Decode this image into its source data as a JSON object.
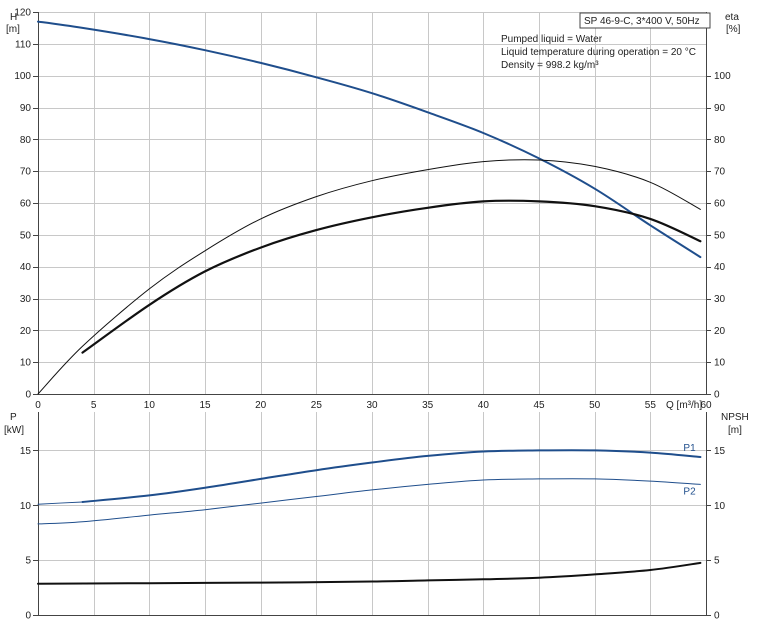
{
  "info_box": {
    "title": "SP 46-9-C, 3*400 V, 50Hz",
    "lines": [
      "Pumped liquid = Water",
      "Liquid temperature during operation = 20 °C",
      "Density = 998.2 kg/m³"
    ]
  },
  "chart_data": [
    {
      "type": "line",
      "name": "upper",
      "left_axis": {
        "label_line1": "H",
        "label_line2": "[m]",
        "range": [
          0,
          120
        ],
        "ticks": [
          0,
          10,
          20,
          30,
          40,
          50,
          60,
          70,
          80,
          90,
          100,
          110,
          120
        ]
      },
      "right_axis": {
        "label_line1": "eta",
        "label_line2": "[%]",
        "range": [
          0,
          120
        ],
        "ticks": [
          0,
          10,
          20,
          30,
          40,
          50,
          60,
          70,
          80,
          90,
          100
        ]
      },
      "x_axis": {
        "label": "Q [m³/h]",
        "range": [
          0,
          60
        ],
        "ticks": [
          0,
          5,
          10,
          15,
          20,
          25,
          30,
          35,
          40,
          45,
          50,
          55,
          60
        ]
      },
      "grid": true,
      "series": [
        {
          "key": "H",
          "color": "#1f4e8c",
          "width": 2,
          "axis": "left",
          "x": [
            0,
            4,
            10,
            15,
            20,
            25,
            30,
            35,
            40,
            45,
            50,
            55,
            59.5
          ],
          "y": [
            117,
            115,
            111.5,
            108,
            104,
            99.5,
            94.5,
            88.5,
            82,
            74,
            64.5,
            53,
            43
          ]
        },
        {
          "key": "eta_motor_pump",
          "color": "#111111",
          "width": 1,
          "axis": "right",
          "x": [
            0,
            4,
            10,
            15,
            20,
            25,
            30,
            35,
            40,
            45,
            50,
            55,
            59.5
          ],
          "y": [
            0,
            15,
            33,
            45,
            55,
            62,
            67,
            70.5,
            73,
            73.5,
            71.5,
            66.5,
            58
          ]
        },
        {
          "key": "eta_pump",
          "color": "#111111",
          "width": 2.2,
          "axis": "right",
          "x": [
            4,
            10,
            15,
            20,
            25,
            30,
            35,
            40,
            45,
            50,
            55,
            59.5
          ],
          "y": [
            13,
            28,
            38.5,
            46,
            51.5,
            55.5,
            58.5,
            60.5,
            60.5,
            59,
            55,
            48
          ]
        }
      ]
    },
    {
      "type": "line",
      "name": "lower",
      "left_axis": {
        "label_line1": "P",
        "label_line2": "[kW]",
        "range": [
          0,
          18.5
        ],
        "ticks": [
          0,
          5,
          10,
          15
        ]
      },
      "right_axis": {
        "label_line1": "NPSH",
        "label_line2": "[m]",
        "range": [
          0,
          18.5
        ],
        "ticks": [
          0,
          5,
          10,
          15
        ]
      },
      "x_axis": {
        "range": [
          0,
          60
        ],
        "ticks": [
          0,
          5,
          10,
          15,
          20,
          25,
          30,
          35,
          40,
          45,
          50,
          55,
          60
        ]
      },
      "grid": true,
      "series": [
        {
          "key": "P1",
          "label": "P1",
          "color": "#1f4e8c",
          "width": 2,
          "axis": "left",
          "x": [
            4,
            10,
            15,
            20,
            25,
            30,
            35,
            40,
            45,
            50,
            55,
            59.5
          ],
          "y": [
            10.3,
            10.9,
            11.6,
            12.4,
            13.2,
            13.9,
            14.5,
            14.9,
            15.0,
            15.0,
            14.8,
            14.4
          ]
        },
        {
          "key": "P2",
          "label": "P2",
          "color": "#1f4e8c",
          "width": 1,
          "axis": "left",
          "x": [
            0,
            4,
            10,
            15,
            20,
            25,
            30,
            35,
            40,
            45,
            50,
            55,
            59.5
          ],
          "y": [
            8.3,
            8.5,
            9.1,
            9.6,
            10.2,
            10.8,
            11.4,
            11.9,
            12.3,
            12.4,
            12.4,
            12.2,
            11.9
          ]
        },
        {
          "key": "P1_left_extension",
          "color": "#1f4e8c",
          "width": 1,
          "axis": "left",
          "x": [
            0,
            4
          ],
          "y": [
            10.1,
            10.3
          ]
        },
        {
          "key": "NPSH",
          "color": "#111111",
          "width": 2,
          "axis": "right",
          "x": [
            0,
            10,
            20,
            30,
            35,
            40,
            45,
            50,
            55,
            59.5
          ],
          "y": [
            2.85,
            2.9,
            2.95,
            3.05,
            3.15,
            3.25,
            3.4,
            3.7,
            4.1,
            4.75
          ]
        }
      ]
    }
  ]
}
